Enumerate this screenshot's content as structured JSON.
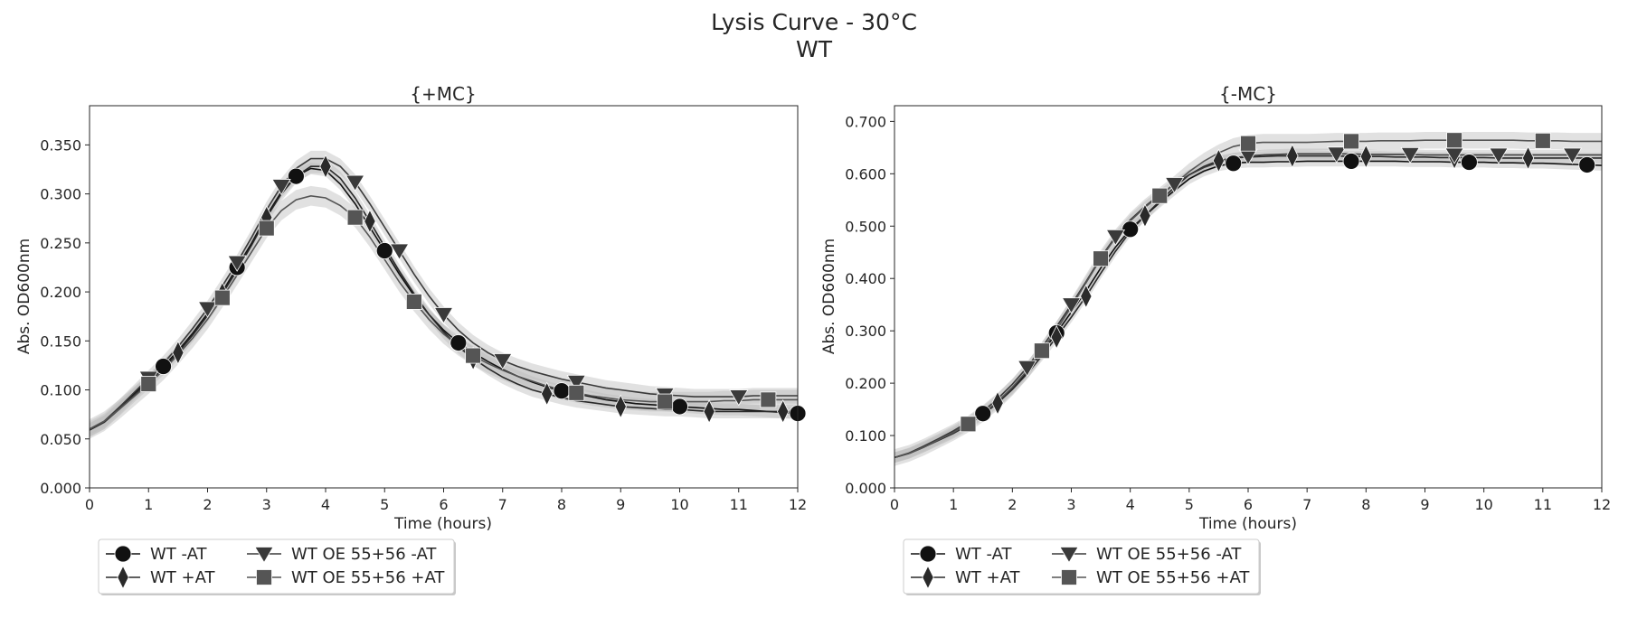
{
  "figure": {
    "title": "Lysis Curve - 30°C",
    "subtitle": "WT"
  },
  "chart_data": [
    {
      "type": "line",
      "title": "{+MC}",
      "xlabel": "Time (hours)",
      "ylabel": "Abs. OD600nm",
      "xlim": [
        0,
        12
      ],
      "ylim": [
        0,
        0.39
      ],
      "xticks": [
        "0",
        "1",
        "2",
        "3",
        "4",
        "5",
        "6",
        "7",
        "8",
        "9",
        "10",
        "11",
        "12"
      ],
      "yticks": [
        "0.000",
        "0.050",
        "0.100",
        "0.150",
        "0.200",
        "0.250",
        "0.300",
        "0.350"
      ],
      "grid": false,
      "legend_position": "below-left",
      "x": [
        0,
        0.25,
        0.5,
        0.75,
        1,
        1.25,
        1.5,
        1.75,
        2,
        2.25,
        2.5,
        2.75,
        3,
        3.25,
        3.5,
        3.75,
        4,
        4.25,
        4.5,
        4.75,
        5,
        5.25,
        5.5,
        5.75,
        6,
        6.25,
        6.5,
        6.75,
        7,
        7.25,
        7.5,
        7.75,
        8,
        8.25,
        8.5,
        8.75,
        9,
        9.25,
        9.5,
        9.75,
        10,
        10.25,
        10.5,
        10.75,
        11,
        11.25,
        11.5,
        11.75,
        12
      ],
      "series": [
        {
          "name": "WT -AT",
          "marker": "circle",
          "color": "#111111",
          "band": 0.006,
          "values": [
            0.06,
            0.068,
            0.082,
            0.096,
            0.11,
            0.124,
            0.14,
            0.158,
            0.178,
            0.2,
            0.225,
            0.25,
            0.278,
            0.302,
            0.318,
            0.326,
            0.324,
            0.31,
            0.29,
            0.266,
            0.242,
            0.218,
            0.196,
            0.177,
            0.161,
            0.148,
            0.138,
            0.129,
            0.121,
            0.114,
            0.108,
            0.103,
            0.099,
            0.096,
            0.093,
            0.09,
            0.088,
            0.086,
            0.085,
            0.084,
            0.083,
            0.082,
            0.081,
            0.08,
            0.08,
            0.079,
            0.078,
            0.077,
            0.076
          ],
          "marker_x": [
            1.25,
            2.5,
            3.5,
            5,
            6.25,
            8,
            10,
            12
          ]
        },
        {
          "name": "WT +AT",
          "marker": "diamond",
          "color": "#2a2a2a",
          "band": 0.007,
          "values": [
            0.059,
            0.067,
            0.08,
            0.094,
            0.108,
            0.122,
            0.138,
            0.156,
            0.176,
            0.198,
            0.222,
            0.248,
            0.276,
            0.3,
            0.318,
            0.328,
            0.328,
            0.316,
            0.296,
            0.272,
            0.246,
            0.221,
            0.198,
            0.177,
            0.159,
            0.144,
            0.132,
            0.122,
            0.113,
            0.106,
            0.1,
            0.096,
            0.092,
            0.089,
            0.087,
            0.085,
            0.083,
            0.082,
            0.081,
            0.08,
            0.08,
            0.079,
            0.078,
            0.078,
            0.078,
            0.078,
            0.078,
            0.078,
            0.078
          ],
          "marker_x": [
            1.5,
            2.25,
            3,
            4,
            4.75,
            6.5,
            7.75,
            9,
            10.5,
            11.75
          ]
        },
        {
          "name": "WT OE 55+56 -AT",
          "marker": "triangle-down",
          "color": "#3a3a3a",
          "band": 0.008,
          "values": [
            0.06,
            0.068,
            0.082,
            0.097,
            0.112,
            0.127,
            0.144,
            0.163,
            0.183,
            0.206,
            0.23,
            0.256,
            0.284,
            0.308,
            0.326,
            0.336,
            0.336,
            0.328,
            0.312,
            0.29,
            0.266,
            0.242,
            0.218,
            0.196,
            0.177,
            0.161,
            0.148,
            0.138,
            0.13,
            0.124,
            0.119,
            0.115,
            0.111,
            0.108,
            0.105,
            0.102,
            0.1,
            0.098,
            0.096,
            0.095,
            0.094,
            0.093,
            0.093,
            0.093,
            0.093,
            0.094,
            0.094,
            0.094,
            0.094
          ],
          "marker_x": [
            1,
            2,
            2.5,
            3.25,
            4.5,
            5.25,
            6,
            7,
            8.25,
            9.75,
            11
          ]
        },
        {
          "name": "WT OE 55+56 +AT",
          "marker": "square",
          "color": "#555555",
          "band": 0.01,
          "values": [
            0.06,
            0.068,
            0.08,
            0.093,
            0.106,
            0.12,
            0.136,
            0.153,
            0.172,
            0.194,
            0.217,
            0.241,
            0.265,
            0.283,
            0.294,
            0.298,
            0.296,
            0.288,
            0.276,
            0.256,
            0.233,
            0.21,
            0.19,
            0.172,
            0.157,
            0.145,
            0.135,
            0.127,
            0.12,
            0.114,
            0.109,
            0.104,
            0.1,
            0.097,
            0.094,
            0.092,
            0.09,
            0.089,
            0.088,
            0.088,
            0.088,
            0.088,
            0.088,
            0.089,
            0.089,
            0.09,
            0.09,
            0.09,
            0.09
          ],
          "marker_x": [
            1,
            2.25,
            3,
            4.5,
            5.5,
            6.5,
            8.25,
            9.75,
            11.5
          ]
        }
      ]
    },
    {
      "type": "line",
      "title": "{-MC}",
      "xlabel": "Time (hours)",
      "ylabel": "Abs. OD600nm",
      "xlim": [
        0,
        12
      ],
      "ylim": [
        0,
        0.73
      ],
      "xticks": [
        "0",
        "1",
        "2",
        "3",
        "4",
        "5",
        "6",
        "7",
        "8",
        "9",
        "10",
        "11",
        "12"
      ],
      "yticks": [
        "0.000",
        "0.100",
        "0.200",
        "0.300",
        "0.400",
        "0.500",
        "0.600",
        "0.700"
      ],
      "grid": false,
      "legend_position": "below-left",
      "x": [
        0,
        0.25,
        0.5,
        0.75,
        1,
        1.25,
        1.5,
        1.75,
        2,
        2.25,
        2.5,
        2.75,
        3,
        3.25,
        3.5,
        3.75,
        4,
        4.25,
        4.5,
        4.75,
        5,
        5.25,
        5.5,
        5.75,
        6,
        6.25,
        6.5,
        6.75,
        7,
        7.25,
        7.5,
        7.75,
        8,
        8.25,
        8.5,
        8.75,
        9,
        9.25,
        9.5,
        9.75,
        10,
        10.25,
        10.5,
        10.75,
        11,
        11.25,
        11.5,
        11.75,
        12
      ],
      "series": [
        {
          "name": "WT -AT",
          "marker": "circle",
          "color": "#111111",
          "band": 0.01,
          "values": [
            0.058,
            0.066,
            0.078,
            0.092,
            0.106,
            0.122,
            0.142,
            0.164,
            0.19,
            0.222,
            0.258,
            0.296,
            0.336,
            0.376,
            0.42,
            0.46,
            0.494,
            0.52,
            0.545,
            0.568,
            0.59,
            0.605,
            0.615,
            0.62,
            0.622,
            0.622,
            0.623,
            0.623,
            0.624,
            0.624,
            0.624,
            0.624,
            0.624,
            0.624,
            0.624,
            0.623,
            0.623,
            0.623,
            0.622,
            0.622,
            0.622,
            0.621,
            0.621,
            0.62,
            0.62,
            0.619,
            0.618,
            0.617,
            0.616
          ],
          "marker_x": [
            1.5,
            2.75,
            4,
            5.75,
            7.75,
            9.75,
            11.75
          ]
        },
        {
          "name": "WT +AT",
          "marker": "diamond",
          "color": "#2a2a2a",
          "band": 0.01,
          "values": [
            0.058,
            0.066,
            0.078,
            0.091,
            0.104,
            0.12,
            0.14,
            0.162,
            0.188,
            0.218,
            0.252,
            0.288,
            0.326,
            0.366,
            0.41,
            0.452,
            0.49,
            0.52,
            0.548,
            0.574,
            0.598,
            0.614,
            0.625,
            0.63,
            0.632,
            0.633,
            0.634,
            0.634,
            0.634,
            0.634,
            0.634,
            0.633,
            0.633,
            0.633,
            0.632,
            0.632,
            0.632,
            0.631,
            0.631,
            0.631,
            0.631,
            0.63,
            0.63,
            0.63,
            0.63,
            0.63,
            0.63,
            0.63,
            0.63
          ],
          "marker_x": [
            1.75,
            2.75,
            3.25,
            4.25,
            5.5,
            6.75,
            8,
            9.5,
            10.75
          ]
        },
        {
          "name": "WT OE 55+56 -AT",
          "marker": "triangle-down",
          "color": "#3a3a3a",
          "band": 0.01,
          "values": [
            0.058,
            0.067,
            0.08,
            0.094,
            0.109,
            0.126,
            0.146,
            0.17,
            0.198,
            0.23,
            0.268,
            0.308,
            0.35,
            0.394,
            0.44,
            0.48,
            0.512,
            0.538,
            0.56,
            0.58,
            0.598,
            0.612,
            0.622,
            0.63,
            0.634,
            0.636,
            0.637,
            0.638,
            0.638,
            0.638,
            0.638,
            0.638,
            0.637,
            0.637,
            0.637,
            0.637,
            0.636,
            0.636,
            0.636,
            0.636,
            0.636,
            0.636,
            0.636,
            0.636,
            0.636,
            0.636,
            0.636,
            0.636,
            0.636
          ],
          "marker_x": [
            2.25,
            3,
            3.75,
            4.75,
            6,
            7.5,
            8.75,
            9.5,
            10.25,
            11.5
          ]
        },
        {
          "name": "WT OE 55+56 +AT",
          "marker": "square",
          "color": "#555555",
          "band": 0.016,
          "values": [
            0.058,
            0.066,
            0.078,
            0.092,
            0.106,
            0.122,
            0.142,
            0.165,
            0.192,
            0.224,
            0.262,
            0.302,
            0.346,
            0.392,
            0.438,
            0.478,
            0.51,
            0.536,
            0.558,
            0.58,
            0.604,
            0.624,
            0.64,
            0.652,
            0.658,
            0.66,
            0.66,
            0.66,
            0.66,
            0.661,
            0.662,
            0.662,
            0.662,
            0.663,
            0.663,
            0.663,
            0.664,
            0.664,
            0.664,
            0.664,
            0.664,
            0.664,
            0.664,
            0.663,
            0.663,
            0.663,
            0.662,
            0.662,
            0.662
          ],
          "marker_x": [
            1.25,
            2.5,
            3.5,
            4.5,
            6,
            7.75,
            9.5,
            11
          ]
        }
      ]
    }
  ]
}
